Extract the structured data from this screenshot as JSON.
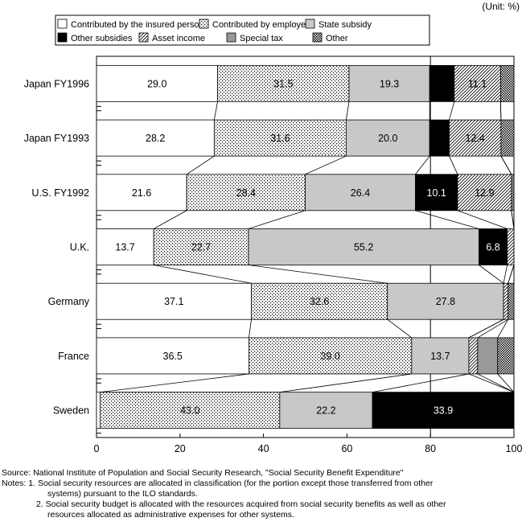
{
  "unit": "(Unit:  %)",
  "chart_data": {
    "type": "bar",
    "orientation": "horizontal",
    "stacked": true,
    "categories": [
      "Japan FY1996",
      "Japan FY1993",
      "U.S. FY1992",
      "U.K.",
      "Germany",
      "France",
      "Sweden"
    ],
    "series": [
      {
        "name": "Contributed by the insured persons",
        "fill": "white",
        "values": [
          29.0,
          28.2,
          21.6,
          13.7,
          37.1,
          36.5,
          0.9
        ],
        "labels": [
          "29.0",
          "28.2",
          "21.6",
          "13.7",
          "37.1",
          "36.5",
          ""
        ]
      },
      {
        "name": "Contributed by employers",
        "fill": "dots",
        "values": [
          31.5,
          31.6,
          28.4,
          22.7,
          32.6,
          39.0,
          43.0
        ],
        "labels": [
          "31.5",
          "31.6",
          "28.4",
          "22.7",
          "32.6",
          "39.0",
          "43.0"
        ]
      },
      {
        "name": "State subsidy",
        "fill": "#c8c8c8",
        "values": [
          19.3,
          20.0,
          26.4,
          55.2,
          27.8,
          13.7,
          22.2
        ],
        "labels": [
          "19.3",
          "20.0",
          "26.4",
          "55.2",
          "27.8",
          "13.7",
          "22.2"
        ]
      },
      {
        "name": "Other subsidies",
        "fill": "#000000",
        "values": [
          5.9,
          4.7,
          10.1,
          6.8,
          0,
          0,
          33.9
        ],
        "labels": [
          "",
          "",
          "10.1",
          "6.8",
          "",
          "",
          "33.9"
        ]
      },
      {
        "name": "Asset income",
        "fill": "hatch",
        "values": [
          11.1,
          12.4,
          12.9,
          1.6,
          1.1,
          2.1,
          0
        ],
        "labels": [
          "11.1",
          "12.4",
          "12.9",
          "",
          "",
          "",
          ""
        ]
      },
      {
        "name": "Special tax",
        "fill": "#999999",
        "values": [
          0,
          0,
          0,
          0,
          0,
          4.8,
          0
        ],
        "labels": [
          "",
          "",
          "",
          "",
          "",
          "",
          ""
        ]
      },
      {
        "name": "Other",
        "fill": "crosshatch",
        "values": [
          3.2,
          3.1,
          0.6,
          0,
          1.4,
          3.9,
          0
        ],
        "labels": [
          "",
          "",
          "",
          "",
          "",
          "",
          ""
        ]
      }
    ],
    "xlim": [
      0,
      100
    ],
    "xticks": [
      "0",
      "20",
      "40",
      "60",
      "80",
      "100"
    ],
    "grid": "vertical at 80",
    "legend": "top"
  },
  "footer": {
    "source": "Source:  National Institute of Population and Social Security Research, \"Social Security Benefit Expenditure\"",
    "note1a": "Notes:  1.  Social security resources are allocated in classification (for the portion except those transferred from other",
    "note1b": "systems) pursuant to the ILO standards.",
    "note2a": "2.  Social security budget is allocated with the resources acquired from social security benefits as well as other",
    "note2b": "resources allocated as administrative expenses for other systems."
  }
}
